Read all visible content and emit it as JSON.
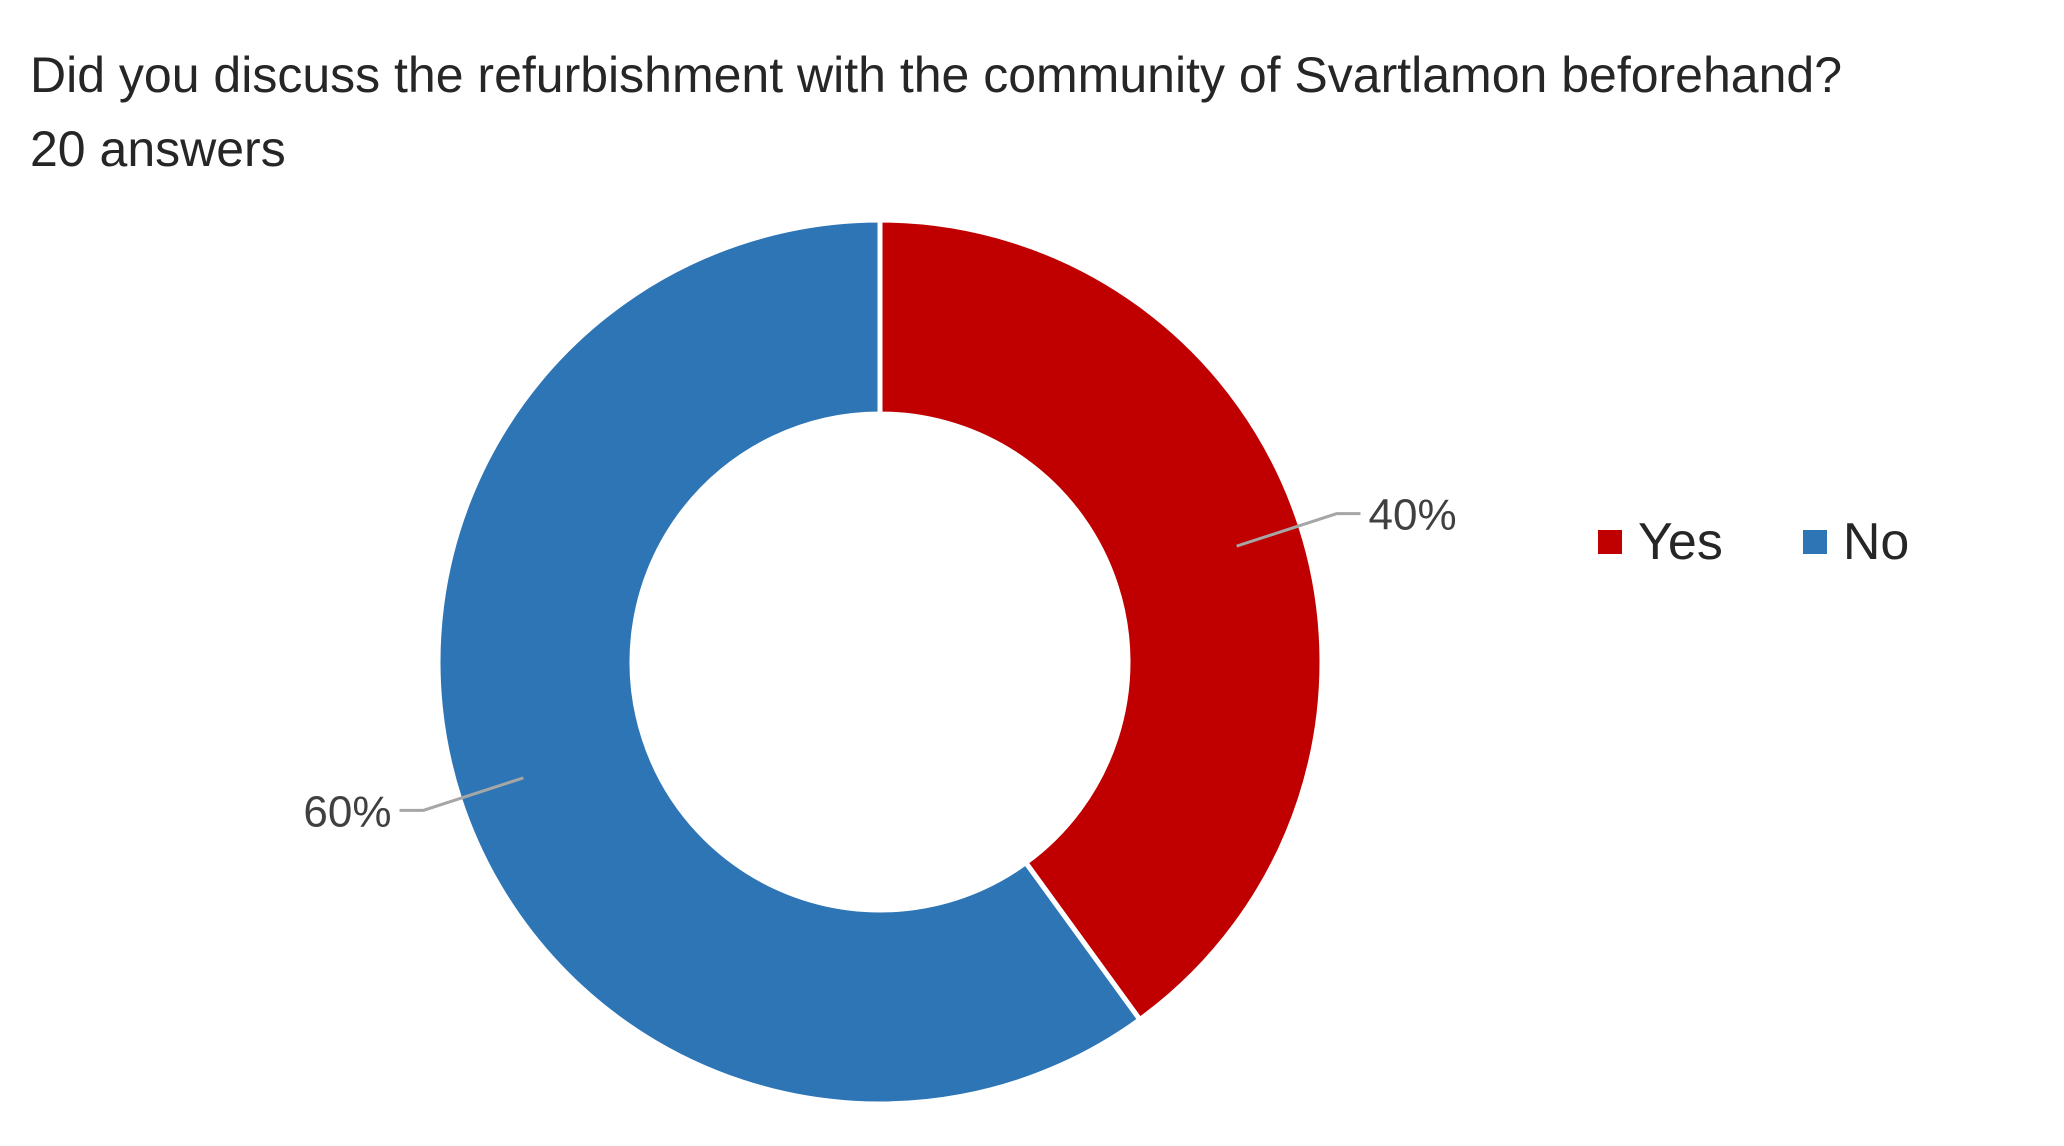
{
  "chart_data": {
    "type": "pie",
    "variant": "donut",
    "title": "Did you discuss the refurbishment with the community of Svartlamon beforehand?",
    "subtitle": "20 answers",
    "categories": [
      "Yes",
      "No"
    ],
    "values": [
      40,
      60
    ],
    "unit": "%",
    "data_labels": [
      "40%",
      "60%"
    ],
    "colors": [
      "#c00000",
      "#2e75b6"
    ],
    "legend_position": "right",
    "legend": [
      "Yes",
      "No"
    ]
  }
}
